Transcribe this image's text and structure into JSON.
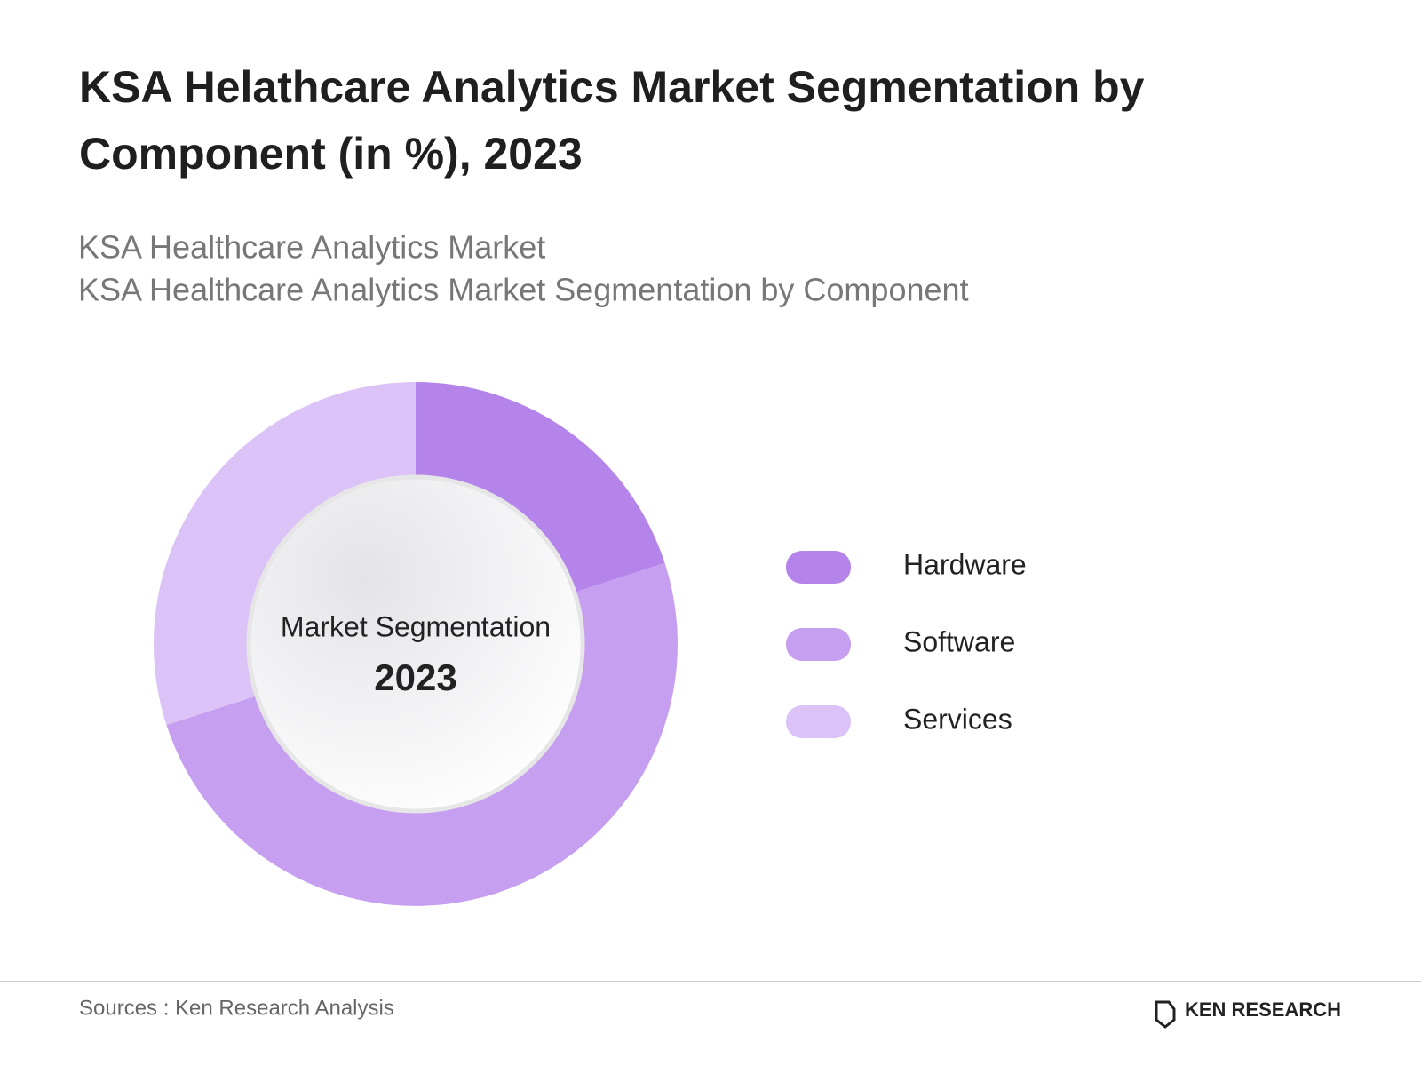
{
  "chart_data": {
    "type": "donut",
    "title": "KSA Helathcare Analytics Market Segmentation by Component (in %), 2023",
    "subtitle": [
      "KSA Healthcare Analytics Market",
      "KSA Healthcare Analytics Market Segmentation by Component"
    ],
    "center_label": "Market Segmentation",
    "center_value": "2023",
    "categories": [
      "Hardware",
      "Software",
      "Services"
    ],
    "values": [
      20,
      50,
      30
    ],
    "colors": [
      "#b584eb",
      "#c69ff0",
      "#dcc3f7"
    ]
  },
  "footer": {
    "source": "Sources : Ken Research Analysis",
    "logo": "KEN RESEARCH"
  }
}
